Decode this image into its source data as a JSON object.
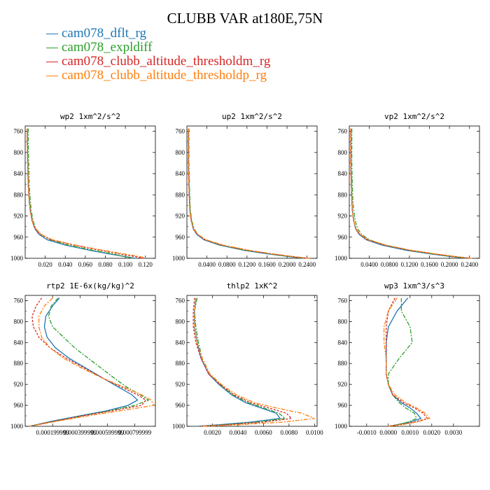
{
  "figure": {
    "title": "CLUBB VAR at180E,75N"
  },
  "legend": [
    {
      "label": "cam078_dflt_rg",
      "color": "#1f77b4"
    },
    {
      "label": "cam078_expldiff",
      "color": "#2ca02c"
    },
    {
      "label": "cam078_clubb_altitude_thresholdm_rg",
      "color": "#d62728"
    },
    {
      "label": "cam078_clubb_altitude_thresholdp_rg",
      "color": "#ff7f0e"
    }
  ],
  "chart_data": [
    {
      "type": "line",
      "title": "wp2  1xm^2/s^2",
      "ylim": [
        1000,
        750
      ],
      "y_ticks": [
        "760",
        "800",
        "840",
        "880",
        "920",
        "960",
        "1000"
      ],
      "xlim": [
        0,
        0.13
      ],
      "x_ticks": [
        0.02,
        0.04,
        0.06,
        0.08,
        0.1,
        0.12
      ],
      "x_tick_labels": [
        "0.020",
        "0.040",
        "0.060",
        "0.080",
        "0.100",
        "0.120"
      ],
      "series": [
        {
          "y": [
            755,
            780,
            820,
            860,
            890,
            910,
            930,
            945,
            955,
            965,
            975,
            985,
            992,
            997,
            1000
          ],
          "x": [
            0.002,
            0.002,
            0.0025,
            0.003,
            0.004,
            0.005,
            0.007,
            0.01,
            0.014,
            0.022,
            0.04,
            0.065,
            0.085,
            0.1,
            0.11
          ]
        },
        {
          "y": [
            755,
            780,
            820,
            860,
            890,
            910,
            930,
            945,
            955,
            965,
            975,
            985,
            992,
            997,
            1000
          ],
          "x": [
            0.003,
            0.003,
            0.0035,
            0.004,
            0.005,
            0.006,
            0.008,
            0.011,
            0.016,
            0.025,
            0.043,
            0.068,
            0.088,
            0.1,
            0.108
          ]
        },
        {
          "y": [
            755,
            780,
            820,
            860,
            890,
            910,
            930,
            945,
            955,
            965,
            975,
            985,
            992,
            997,
            1000
          ],
          "x": [
            0.002,
            0.002,
            0.0025,
            0.003,
            0.004,
            0.005,
            0.007,
            0.01,
            0.015,
            0.026,
            0.048,
            0.075,
            0.095,
            0.11,
            0.118
          ]
        },
        {
          "y": [
            755,
            780,
            820,
            860,
            890,
            910,
            930,
            945,
            955,
            965,
            975,
            985,
            992,
            997,
            1000
          ],
          "x": [
            0.002,
            0.002,
            0.0025,
            0.003,
            0.004,
            0.005,
            0.007,
            0.011,
            0.016,
            0.027,
            0.05,
            0.078,
            0.1,
            0.115,
            0.122
          ]
        }
      ]
    },
    {
      "type": "line",
      "title": "up2  1xm^2/s^2",
      "ylim": [
        1000,
        750
      ],
      "y_ticks": [
        "760",
        "800",
        "840",
        "880",
        "920",
        "960",
        "1000"
      ],
      "xlim": [
        0,
        0.26
      ],
      "x_ticks": [
        0.04,
        0.08,
        0.12,
        0.16,
        0.2,
        0.24
      ],
      "x_tick_labels": [
        "0.0400",
        "0.0800",
        "0.1200",
        "0.1600",
        "0.2000",
        "0.2400"
      ],
      "series": [
        {
          "y": [
            755,
            780,
            820,
            860,
            890,
            910,
            930,
            945,
            955,
            965,
            975,
            985,
            992,
            997,
            1000
          ],
          "x": [
            0.003,
            0.003,
            0.003,
            0.004,
            0.005,
            0.006,
            0.009,
            0.013,
            0.02,
            0.034,
            0.065,
            0.115,
            0.165,
            0.205,
            0.235
          ]
        },
        {
          "y": [
            755,
            780,
            820,
            860,
            890,
            910,
            930,
            945,
            955,
            965,
            975,
            985,
            992,
            997,
            1000
          ],
          "x": [
            0.004,
            0.004,
            0.004,
            0.005,
            0.006,
            0.007,
            0.01,
            0.015,
            0.022,
            0.036,
            0.068,
            0.118,
            0.168,
            0.208,
            0.238
          ]
        },
        {
          "y": [
            755,
            780,
            820,
            860,
            890,
            910,
            930,
            945,
            955,
            965,
            975,
            985,
            992,
            997,
            1000
          ],
          "x": [
            0.003,
            0.003,
            0.003,
            0.004,
            0.005,
            0.006,
            0.009,
            0.013,
            0.021,
            0.036,
            0.07,
            0.122,
            0.172,
            0.212,
            0.242
          ]
        },
        {
          "y": [
            755,
            780,
            820,
            860,
            890,
            910,
            930,
            945,
            955,
            965,
            975,
            985,
            992,
            997,
            1000
          ],
          "x": [
            0.003,
            0.003,
            0.003,
            0.004,
            0.005,
            0.006,
            0.009,
            0.014,
            0.022,
            0.038,
            0.072,
            0.125,
            0.175,
            0.215,
            0.245
          ]
        }
      ]
    },
    {
      "type": "line",
      "title": "vp2  1xm^2/s^2",
      "ylim": [
        1000,
        750
      ],
      "y_ticks": [
        "760",
        "800",
        "840",
        "880",
        "920",
        "960",
        "1000"
      ],
      "xlim": [
        0,
        0.26
      ],
      "x_ticks": [
        0.04,
        0.08,
        0.12,
        0.16,
        0.2,
        0.24
      ],
      "x_tick_labels": [
        "0.0400",
        "0.0800",
        "0.1200",
        "0.1600",
        "0.2000",
        "0.2400"
      ],
      "series": [
        {
          "y": [
            755,
            780,
            820,
            860,
            890,
            910,
            930,
            945,
            955,
            965,
            975,
            985,
            992,
            997,
            1000
          ],
          "x": [
            0.003,
            0.003,
            0.003,
            0.004,
            0.005,
            0.006,
            0.009,
            0.013,
            0.02,
            0.034,
            0.065,
            0.115,
            0.165,
            0.205,
            0.235
          ]
        },
        {
          "y": [
            755,
            780,
            820,
            860,
            890,
            910,
            930,
            945,
            955,
            965,
            975,
            985,
            992,
            997,
            1000
          ],
          "x": [
            0.005,
            0.005,
            0.005,
            0.006,
            0.007,
            0.009,
            0.012,
            0.017,
            0.025,
            0.04,
            0.072,
            0.12,
            0.17,
            0.208,
            0.238
          ]
        },
        {
          "y": [
            755,
            780,
            820,
            860,
            890,
            910,
            930,
            945,
            955,
            965,
            975,
            985,
            992,
            997,
            1000
          ],
          "x": [
            0.003,
            0.003,
            0.003,
            0.004,
            0.005,
            0.006,
            0.009,
            0.013,
            0.021,
            0.036,
            0.07,
            0.122,
            0.172,
            0.212,
            0.242
          ]
        },
        {
          "y": [
            755,
            780,
            820,
            860,
            890,
            910,
            930,
            945,
            955,
            965,
            975,
            985,
            992,
            997,
            1000
          ],
          "x": [
            0.003,
            0.003,
            0.003,
            0.004,
            0.005,
            0.006,
            0.009,
            0.014,
            0.022,
            0.038,
            0.072,
            0.125,
            0.175,
            0.215,
            0.245
          ]
        }
      ]
    },
    {
      "type": "line",
      "title": "rtp2  1E-6x(kg/kg)^2",
      "ylim": [
        1000,
        750
      ],
      "y_ticks": [
        "760",
        "800",
        "840",
        "880",
        "920",
        "960",
        "1000"
      ],
      "xlim": [
        0,
        0.00095
      ],
      "x_ticks": [
        0.0002,
        0.0004,
        0.0006,
        0.0008
      ],
      "x_tick_labels": [
        "0.000199999",
        "0.000399999",
        "0.000599999",
        "0.000799999"
      ],
      "series": [
        {
          "y": [
            755,
            770,
            790,
            810,
            830,
            850,
            870,
            890,
            910,
            925,
            940,
            950,
            960,
            970,
            980,
            990,
            1000
          ],
          "x": [
            0.00025,
            0.0002,
            0.00015,
            0.00014,
            0.00016,
            0.00022,
            0.00032,
            0.00045,
            0.00058,
            0.00068,
            0.00078,
            0.00082,
            0.00075,
            0.0006,
            0.0004,
            0.0002,
            3e-05
          ]
        },
        {
          "y": [
            755,
            770,
            790,
            810,
            830,
            850,
            870,
            890,
            910,
            925,
            940,
            950,
            960,
            970,
            980,
            990,
            1000
          ],
          "x": [
            0.00024,
            0.00019,
            0.00017,
            0.0002,
            0.00028,
            0.00036,
            0.00046,
            0.00056,
            0.00066,
            0.00074,
            0.00084,
            0.0009,
            0.0008,
            0.00062,
            0.00042,
            0.00022,
            3e-05
          ]
        },
        {
          "y": [
            755,
            770,
            790,
            810,
            830,
            850,
            870,
            890,
            910,
            925,
            940,
            950,
            960,
            970,
            980,
            990,
            1000
          ],
          "x": [
            0.00012,
            8e-05,
            5e-05,
            6e-05,
            0.0001,
            0.00018,
            0.0003,
            0.00044,
            0.00058,
            0.0007,
            0.00082,
            0.00088,
            0.00085,
            0.00064,
            0.00042,
            0.00022,
            3e-05
          ]
        },
        {
          "y": [
            755,
            770,
            790,
            810,
            830,
            850,
            870,
            890,
            910,
            925,
            940,
            950,
            960,
            970,
            980,
            990,
            1000
          ],
          "x": [
            0.0002,
            0.00014,
            0.0001,
            0.0001,
            0.00012,
            0.00018,
            0.00028,
            0.00042,
            0.00058,
            0.00072,
            0.00085,
            0.00092,
            0.00094,
            0.0007,
            0.00046,
            0.00024,
            3e-05
          ]
        }
      ]
    },
    {
      "type": "line",
      "title": "thlp2  1xK^2",
      "ylim": [
        1000,
        750
      ],
      "y_ticks": [
        "760",
        "800",
        "840",
        "880",
        "920",
        "960",
        "1000"
      ],
      "xlim": [
        0,
        0.0102
      ],
      "x_ticks": [
        0.002,
        0.004,
        0.006,
        0.008,
        0.01
      ],
      "x_tick_labels": [
        "0.0020",
        "0.0040",
        "0.0060",
        "0.0080",
        "0.0100"
      ],
      "series": [
        {
          "y": [
            755,
            780,
            810,
            840,
            870,
            900,
            920,
            940,
            955,
            965,
            975,
            985,
            992,
            997,
            1000
          ],
          "x": [
            0.0007,
            0.0006,
            0.0006,
            0.0008,
            0.0011,
            0.0017,
            0.0025,
            0.0035,
            0.0046,
            0.0058,
            0.007,
            0.0073,
            0.005,
            0.0025,
            0.0008
          ]
        },
        {
          "y": [
            755,
            780,
            810,
            840,
            870,
            900,
            920,
            940,
            955,
            965,
            975,
            985,
            992,
            997,
            1000
          ],
          "x": [
            0.0008,
            0.0006,
            0.0007,
            0.0009,
            0.0012,
            0.0018,
            0.0026,
            0.0036,
            0.0048,
            0.006,
            0.0072,
            0.0077,
            0.0055,
            0.003,
            0.001
          ]
        },
        {
          "y": [
            755,
            780,
            810,
            840,
            870,
            900,
            920,
            940,
            955,
            965,
            975,
            985,
            992,
            997,
            1000
          ],
          "x": [
            0.0006,
            0.0005,
            0.0005,
            0.0007,
            0.0011,
            0.0017,
            0.0026,
            0.0037,
            0.005,
            0.0064,
            0.0078,
            0.0082,
            0.006,
            0.0032,
            0.001
          ]
        },
        {
          "y": [
            755,
            780,
            810,
            840,
            870,
            900,
            920,
            940,
            955,
            965,
            975,
            985,
            992,
            997,
            1000
          ],
          "x": [
            0.0007,
            0.0006,
            0.0006,
            0.0008,
            0.0012,
            0.0018,
            0.0027,
            0.0039,
            0.0053,
            0.007,
            0.009,
            0.01,
            0.0075,
            0.004,
            0.0012
          ]
        }
      ]
    },
    {
      "type": "line",
      "title": "wp3  1xm^3/s^3",
      "ylim": [
        1000,
        750
      ],
      "y_ticks": [
        "760",
        "800",
        "840",
        "880",
        "920",
        "960",
        "1000"
      ],
      "xlim": [
        -0.0018,
        0.0042
      ],
      "x_ticks": [
        -0.001,
        0,
        0.001,
        0.002,
        0.003
      ],
      "x_tick_labels": [
        "-0.0010",
        "0.0000",
        "0.0010",
        "0.0020",
        "0.0030"
      ],
      "series": [
        {
          "y": [
            755,
            780,
            810,
            840,
            870,
            900,
            920,
            940,
            955,
            965,
            975,
            985,
            992,
            997,
            1000
          ],
          "x": [
            0.0009,
            0.0004,
            0.0,
            -0.0001,
            -0.0001,
            -0.0001,
            0.0,
            0.0002,
            0.0006,
            0.001,
            0.0013,
            0.0015,
            0.001,
            0.0004,
            0.0
          ]
        },
        {
          "y": [
            755,
            780,
            810,
            840,
            870,
            900,
            920,
            940,
            955,
            965,
            975,
            985,
            992,
            997,
            1000
          ],
          "x": [
            0.0006,
            0.0006,
            0.001,
            0.0011,
            0.0005,
            0.0,
            0.0,
            0.0002,
            0.0005,
            0.0008,
            0.0012,
            0.0013,
            0.0009,
            0.0004,
            0.0
          ]
        },
        {
          "y": [
            755,
            780,
            810,
            840,
            870,
            900,
            920,
            940,
            955,
            965,
            975,
            985,
            992,
            997,
            1000
          ],
          "x": [
            0.0003,
            0.0,
            -0.0001,
            -0.0001,
            -0.0001,
            -0.0001,
            0.0,
            0.0002,
            0.0007,
            0.0012,
            0.0016,
            0.0018,
            0.0012,
            0.0005,
            0.0
          ]
        },
        {
          "y": [
            755,
            780,
            810,
            840,
            870,
            900,
            920,
            940,
            955,
            965,
            975,
            985,
            992,
            997,
            1000
          ],
          "x": [
            0.0004,
            0.0,
            -0.0002,
            -0.0002,
            -0.0001,
            -0.0001,
            0.0,
            0.0003,
            0.0008,
            0.0013,
            0.0017,
            0.0019,
            0.0013,
            0.0006,
            0.0
          ]
        }
      ]
    }
  ]
}
